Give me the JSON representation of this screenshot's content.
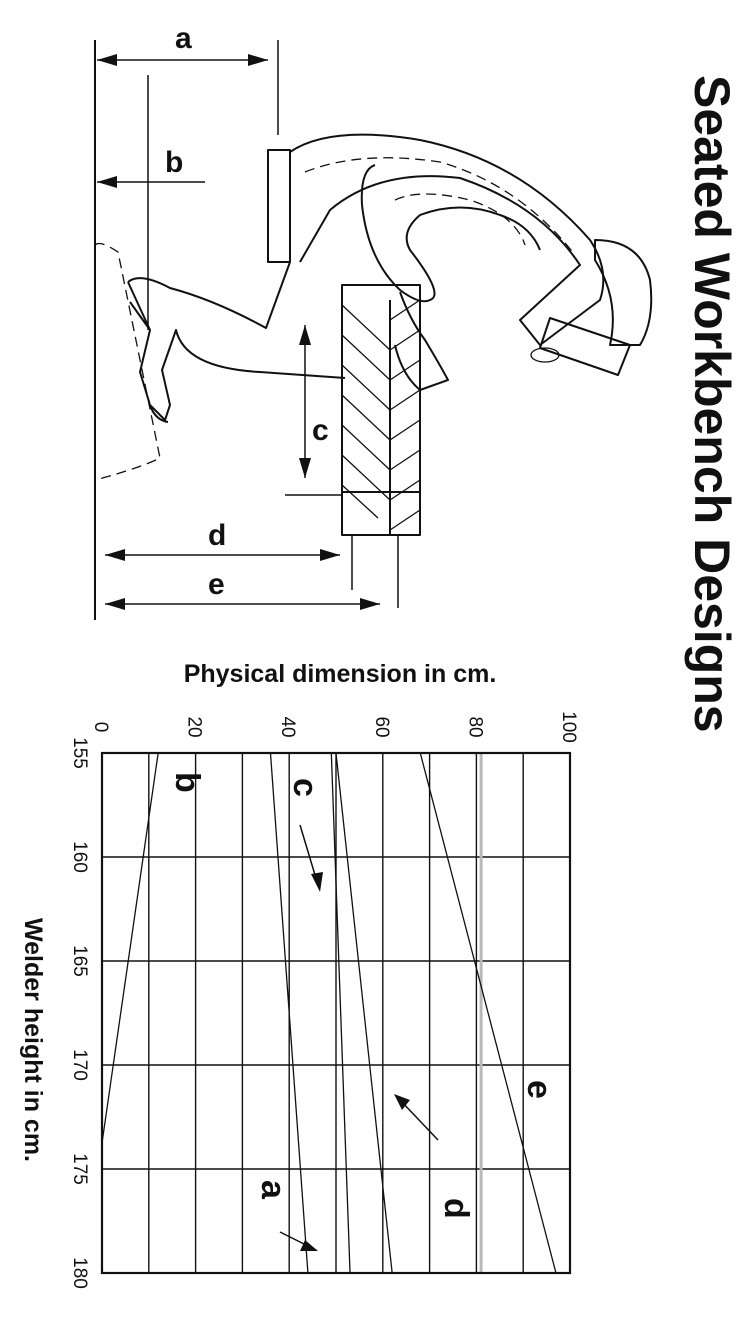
{
  "chart_data": {
    "type": "line",
    "title": "Seated Workbench Designs",
    "xlabel": "Welder height in cm.",
    "ylabel": "Physical dimension in cm.",
    "xlim": [
      155,
      180
    ],
    "ylim": [
      0,
      100
    ],
    "x_ticks": [
      155,
      160,
      165,
      170,
      175,
      180
    ],
    "y_ticks": [
      0,
      20,
      40,
      60,
      80,
      100
    ],
    "grid": true,
    "series": [
      {
        "name": "a",
        "x": [
          155,
          180
        ],
        "values": [
          36,
          44
        ]
      },
      {
        "name": "b",
        "x": [
          155,
          180
        ],
        "values": [
          12,
          -4
        ]
      },
      {
        "name": "c",
        "x": [
          155,
          180
        ],
        "values": [
          49,
          53
        ]
      },
      {
        "name": "d",
        "x": [
          155,
          180
        ],
        "values": [
          50,
          62
        ]
      },
      {
        "name": "e",
        "x": [
          155,
          180
        ],
        "values": [
          68,
          97
        ]
      }
    ],
    "reference_line": {
      "value": 81,
      "color": "#b8b8b8"
    },
    "annotations": [
      "a",
      "b",
      "c",
      "d",
      "e"
    ],
    "diagram_labels": [
      "a",
      "b",
      "c",
      "d",
      "e"
    ]
  }
}
